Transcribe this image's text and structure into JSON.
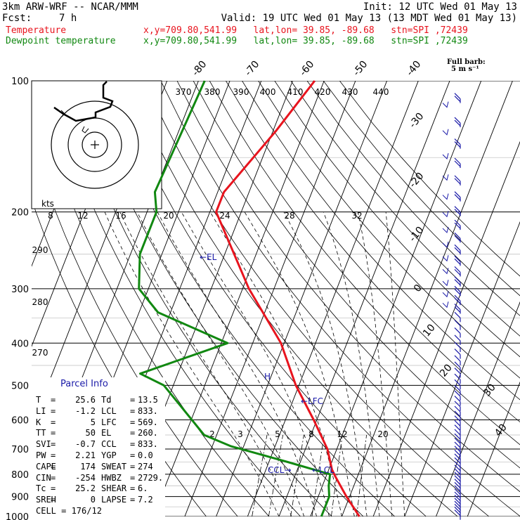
{
  "header": {
    "model": "3km ARW-WRF -- NCAR/MMM",
    "init": "Init: 12 UTC Wed 01 May 13",
    "fcst_label": "Fcst:",
    "fcst_value": "7 h",
    "valid": "Valid: 19 UTC Wed 01 May 13 (13 MDT Wed 01 May 13)",
    "temp_line": "Temperature",
    "dew_line": "Dewpoint temperature",
    "temp_loc": "x,y=709.80,541.99   lat,lon= 39.85, -89.68   stn=SPI ,72439",
    "dew_loc": "x,y=709.80,541.99   lat,lon= 39.85, -89.68   stn=SPI ,72439",
    "full_barb": "Full barb:",
    "full_barb_units": "5 m s⁻¹"
  },
  "colors": {
    "temperature": "#e8141e",
    "dewpoint": "#118811",
    "barbs": "#1a1aa8",
    "parcel": "#1a1aa8"
  },
  "chart_data": {
    "type": "skew-t",
    "pressure_levels": [
      100,
      200,
      300,
      400,
      500,
      600,
      700,
      800,
      900,
      1000
    ],
    "pressure_labels": [
      "100",
      "200",
      "300",
      "400",
      "500",
      "600",
      "700",
      "800",
      "900",
      "1000"
    ],
    "isotherm_labels": [
      "-80",
      "-70",
      "-60",
      "-50",
      "-40",
      "-30",
      "-20",
      "-10",
      "0",
      "10",
      "20",
      "30",
      "40"
    ],
    "theta_labels": [
      "370",
      "380",
      "390",
      "400",
      "410",
      "420",
      "430",
      "440"
    ],
    "mixing_ratio_labels": [
      "2",
      "3",
      "5",
      "8",
      "12",
      "20"
    ],
    "hodograph": {
      "units_label": "kts",
      "speed_labels": [
        "8",
        "12",
        "16",
        "20",
        "24",
        "28",
        "32"
      ],
      "direction_labels": [
        "290",
        "280",
        "270"
      ]
    },
    "annotations": {
      "el": "←EL",
      "lfc": "←LFC",
      "lcl": "←LCL",
      "ccl": "CCL→"
    },
    "series": [
      {
        "name": "Temperature",
        "points": [
          [
            100,
            -43
          ],
          [
            130,
            -49
          ],
          [
            180,
            -58
          ],
          [
            200,
            -58
          ],
          [
            300,
            -38
          ],
          [
            400,
            -21
          ],
          [
            500,
            -11
          ],
          [
            600,
            -1
          ],
          [
            700,
            7
          ],
          [
            780,
            11
          ],
          [
            810,
            13
          ],
          [
            900,
            19
          ],
          [
            1000,
            25.6
          ]
        ]
      },
      {
        "name": "Dewpoint temperature",
        "points": [
          [
            100,
            -78
          ],
          [
            180,
            -80
          ],
          [
            200,
            -77
          ],
          [
            250,
            -77
          ],
          [
            300,
            -73
          ],
          [
            340,
            -64
          ],
          [
            400,
            -38
          ],
          [
            470,
            -62
          ],
          [
            500,
            -53
          ],
          [
            650,
            -34
          ],
          [
            690,
            -24
          ],
          [
            750,
            -4
          ],
          [
            800,
            11
          ],
          [
            850,
            12
          ],
          [
            900,
            13.5
          ],
          [
            1000,
            13.5
          ]
        ]
      }
    ]
  },
  "parcel": {
    "title": "Parcel Info",
    "rows": [
      [
        "T",
        "25.6",
        "Td",
        "13.5"
      ],
      [
        "LI",
        "-1.2",
        "LCL",
        "833."
      ],
      [
        "K",
        "5",
        "LFC",
        "569."
      ],
      [
        "TT",
        "50",
        "EL",
        "260."
      ],
      [
        "SVI",
        "-0.7",
        "CCL",
        "833."
      ],
      [
        "PW",
        "2.21",
        "YGP",
        "0.0"
      ],
      [
        "CAPE",
        "174",
        "SWEAT",
        "274"
      ],
      [
        "CIN",
        "-254",
        "HWBZ",
        "2729."
      ],
      [
        "Tc",
        "25.2",
        "SHEAR",
        "6."
      ],
      [
        "SREH",
        "0",
        "LAPSE",
        "7.2"
      ]
    ],
    "cell_label": "CELL",
    "cell_value": "176/12"
  }
}
